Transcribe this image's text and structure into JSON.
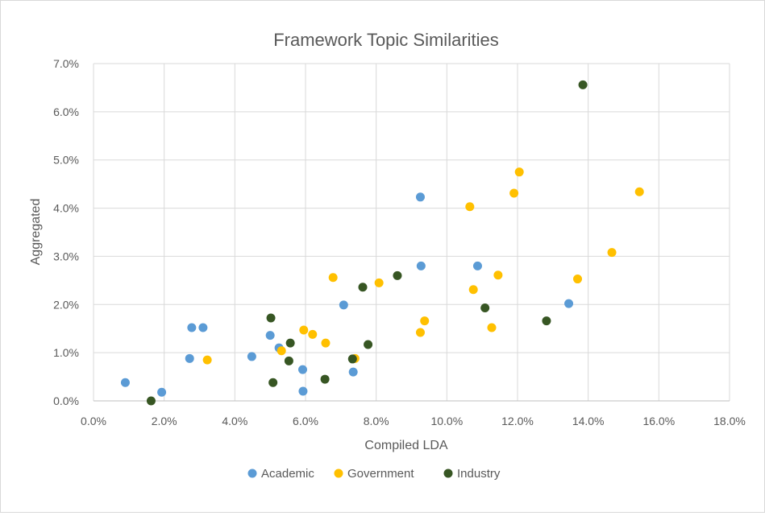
{
  "chart_data": {
    "type": "scatter",
    "title": "Framework Topic Similarities",
    "xlabel": "Compiled LDA",
    "ylabel": "Aggregated",
    "xlim": [
      0,
      0.18
    ],
    "ylim": [
      0,
      0.07
    ],
    "x_ticks": [
      "0.0%",
      "2.0%",
      "4.0%",
      "6.0%",
      "8.0%",
      "10.0%",
      "12.0%",
      "14.0%",
      "16.0%",
      "18.0%"
    ],
    "y_ticks": [
      "0.0%",
      "1.0%",
      "2.0%",
      "3.0%",
      "4.0%",
      "5.0%",
      "6.0%",
      "7.0%"
    ],
    "grid": true,
    "legend_position": "bottom",
    "series": [
      {
        "name": "Academic",
        "color": "#5b9bd5",
        "points": [
          [
            0.009,
            0.0038
          ],
          [
            0.0193,
            0.0018
          ],
          [
            0.0272,
            0.0088
          ],
          [
            0.0278,
            0.0152
          ],
          [
            0.031,
            0.0152
          ],
          [
            0.0448,
            0.0092
          ],
          [
            0.05,
            0.0136
          ],
          [
            0.0525,
            0.011
          ],
          [
            0.0592,
            0.0065
          ],
          [
            0.0593,
            0.002
          ],
          [
            0.0708,
            0.0199
          ],
          [
            0.0735,
            0.006
          ],
          [
            0.0925,
            0.0423
          ],
          [
            0.0927,
            0.028
          ],
          [
            0.1087,
            0.028
          ],
          [
            0.1345,
            0.0202
          ]
        ]
      },
      {
        "name": "Government",
        "color": "#ffc000",
        "points": [
          [
            0.0322,
            0.0085
          ],
          [
            0.0532,
            0.0104
          ],
          [
            0.0595,
            0.0147
          ],
          [
            0.062,
            0.0138
          ],
          [
            0.0657,
            0.012
          ],
          [
            0.0678,
            0.0256
          ],
          [
            0.074,
            0.0088
          ],
          [
            0.0808,
            0.0245
          ],
          [
            0.0925,
            0.0142
          ],
          [
            0.0937,
            0.0166
          ],
          [
            0.1065,
            0.0403
          ],
          [
            0.1075,
            0.0231
          ],
          [
            0.1127,
            0.0152
          ],
          [
            0.1145,
            0.0261
          ],
          [
            0.119,
            0.0431
          ],
          [
            0.1205,
            0.0475
          ],
          [
            0.137,
            0.0253
          ],
          [
            0.1467,
            0.0308
          ],
          [
            0.1545,
            0.0434
          ]
        ]
      },
      {
        "name": "Industry",
        "color": "#375623",
        "points": [
          [
            0.0163,
            0.0
          ],
          [
            0.0502,
            0.0172
          ],
          [
            0.0508,
            0.0038
          ],
          [
            0.0553,
            0.0083
          ],
          [
            0.0557,
            0.012
          ],
          [
            0.0655,
            0.0045
          ],
          [
            0.0733,
            0.0087
          ],
          [
            0.0762,
            0.0236
          ],
          [
            0.0777,
            0.0117
          ],
          [
            0.086,
            0.026
          ],
          [
            0.1108,
            0.0193
          ],
          [
            0.1282,
            0.0166
          ],
          [
            0.1385,
            0.0656
          ]
        ]
      }
    ]
  }
}
